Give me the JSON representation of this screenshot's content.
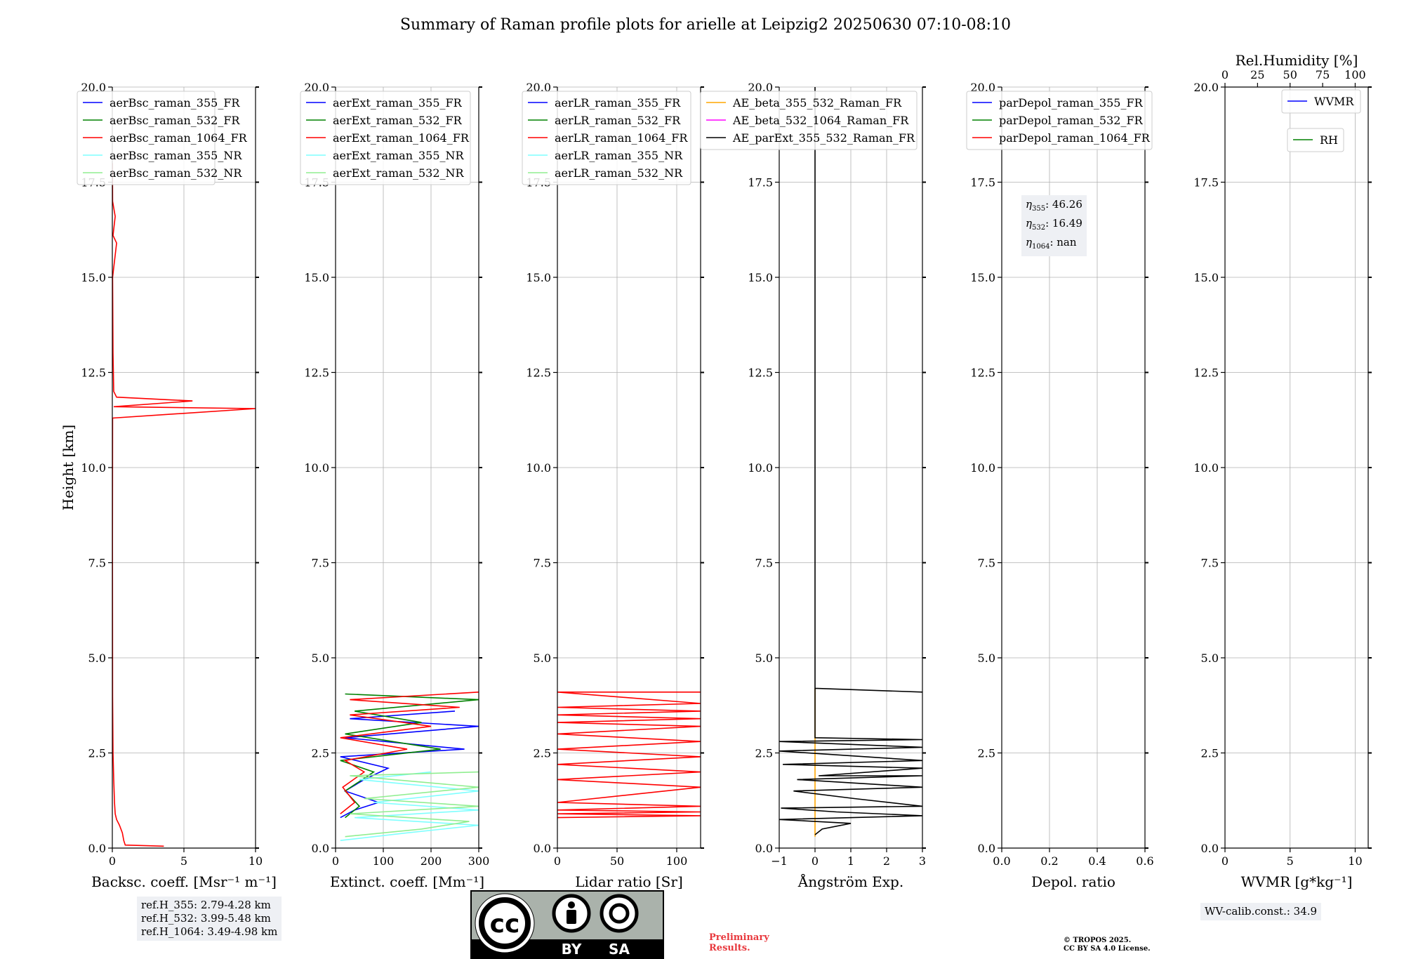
{
  "figure_title": "Summary of Raman profile plots for arielle at Leipzig2 20250630 07:10-08:10",
  "info_boxes": {
    "ref_heights": [
      "ref.H_355: 2.79-4.28 km",
      "ref.H_532: 3.99-5.48 km",
      "ref.H_1064: 3.49-4.98 km"
    ],
    "eta_values": [
      {
        "sub": "355",
        "value": ": 46.26"
      },
      {
        "sub": "532",
        "value": ": 16.49"
      },
      {
        "sub": "1064",
        "value": ": nan"
      }
    ],
    "wv_calib": "WV-calib.const.: 34.9"
  },
  "license_badge": {
    "cc": "cc",
    "by": "BY",
    "sa": "SA"
  },
  "preliminary": [
    "Preliminary",
    "Results."
  ],
  "copyright": [
    "© TROPOS 2025.",
    "CC BY SA 4.0 License."
  ],
  "colors": {
    "blue": "#0000ff",
    "green": "#008000",
    "red": "#ff0000",
    "cyan": "#7fffff",
    "lightgreen": "#90ee90",
    "orange": "#ffa500",
    "magenta": "#ff00ff",
    "black": "#000000"
  },
  "chart_data": [
    {
      "type": "line",
      "xlabel": "Backsc. coeff. [Msr⁻¹ m⁻¹]",
      "ylabel": "Height [km]",
      "xlim": [
        0,
        10
      ],
      "ylim": [
        0,
        20
      ],
      "xticks": [
        0,
        5,
        10
      ],
      "xticklabels": [
        "0",
        "5",
        "10"
      ],
      "yticks": [
        0,
        2.5,
        5,
        7.5,
        10,
        12.5,
        15,
        17.5,
        20
      ],
      "yticklabels": [
        "0.0",
        "2.5",
        "5.0",
        "7.5",
        "10.0",
        "12.5",
        "15.0",
        "17.5",
        "20.0"
      ],
      "grid": true,
      "legend_location": "upper-left",
      "series": [
        {
          "name": "aerBsc_raman_355_FR",
          "color": "blue",
          "points": []
        },
        {
          "name": "aerBsc_raman_532_FR",
          "color": "green",
          "points": []
        },
        {
          "name": "aerBsc_raman_1064_FR",
          "color": "red",
          "points": [
            [
              3.6,
              0.05
            ],
            [
              0.9,
              0.08
            ],
            [
              0.8,
              0.2
            ],
            [
              0.7,
              0.4
            ],
            [
              0.5,
              0.6
            ],
            [
              0.3,
              0.75
            ],
            [
              0.2,
              0.9
            ],
            [
              0.15,
              1.2
            ],
            [
              0.1,
              1.8
            ],
            [
              0.05,
              2.5
            ],
            [
              0.02,
              4
            ],
            [
              0.01,
              8
            ],
            [
              0.02,
              11.3
            ],
            [
              10,
              11.55
            ],
            [
              0.1,
              11.6
            ],
            [
              5.6,
              11.75
            ],
            [
              0.3,
              11.85
            ],
            [
              0.1,
              12.0
            ],
            [
              0.05,
              13
            ],
            [
              0.02,
              15
            ],
            [
              0.3,
              15.9
            ],
            [
              0.05,
              16.1
            ],
            [
              0.2,
              16.6
            ],
            [
              0.02,
              17.0
            ],
            [
              0.01,
              18
            ]
          ]
        },
        {
          "name": "aerBsc_raman_355_NR",
          "color": "cyan",
          "points": []
        },
        {
          "name": "aerBsc_raman_532_NR",
          "color": "lightgreen",
          "points": []
        }
      ]
    },
    {
      "type": "line",
      "xlabel": "Extinct. coeff. [Mm⁻¹]",
      "ylabel": "",
      "xlim": [
        0,
        300
      ],
      "ylim": [
        0,
        20
      ],
      "xticks": [
        0,
        100,
        200,
        300
      ],
      "xticklabels": [
        "0",
        "100",
        "200",
        "300"
      ],
      "yticks": [
        0,
        2.5,
        5,
        7.5,
        10,
        12.5,
        15,
        17.5,
        20
      ],
      "yticklabels": [
        "0.0",
        "2.5",
        "5.0",
        "7.5",
        "10.0",
        "12.5",
        "15.0",
        "17.5",
        "20.0"
      ],
      "grid": true,
      "legend_location": "upper-left",
      "series": [
        {
          "name": "aerExt_raman_355_FR",
          "color": "blue",
          "points": [
            [
              10,
              0.8
            ],
            [
              40,
              1.0
            ],
            [
              90,
              1.2
            ],
            [
              20,
              1.5
            ],
            [
              60,
              1.8
            ],
            [
              110,
              2.1
            ],
            [
              10,
              2.4
            ],
            [
              270,
              2.6
            ],
            [
              20,
              2.9
            ],
            [
              300,
              3.2
            ],
            [
              30,
              3.4
            ],
            [
              250,
              3.6
            ]
          ]
        },
        {
          "name": "aerExt_raman_532_FR",
          "color": "green",
          "points": [
            [
              20,
              0.8
            ],
            [
              50,
              1.1
            ],
            [
              20,
              1.5
            ],
            [
              80,
              2.0
            ],
            [
              10,
              2.3
            ],
            [
              220,
              2.6
            ],
            [
              20,
              3.0
            ],
            [
              180,
              3.3
            ],
            [
              40,
              3.6
            ],
            [
              300,
              3.9
            ],
            [
              20,
              4.05
            ]
          ]
        },
        {
          "name": "aerExt_raman_1064_FR",
          "color": "red",
          "points": [
            [
              10,
              0.9
            ],
            [
              40,
              1.2
            ],
            [
              15,
              1.6
            ],
            [
              60,
              2.0
            ],
            [
              20,
              2.3
            ],
            [
              150,
              2.6
            ],
            [
              10,
              2.9
            ],
            [
              200,
              3.2
            ],
            [
              30,
              3.5
            ],
            [
              260,
              3.7
            ],
            [
              30,
              3.9
            ],
            [
              300,
              4.1
            ]
          ]
        },
        {
          "name": "aerExt_raman_355_NR",
          "color": "cyan",
          "points": [
            [
              10,
              0.2
            ],
            [
              150,
              0.4
            ],
            [
              300,
              0.6
            ],
            [
              40,
              0.8
            ],
            [
              300,
              1.0
            ],
            [
              80,
              1.2
            ],
            [
              300,
              1.5
            ],
            [
              50,
              1.8
            ],
            [
              200,
              2.0
            ]
          ]
        },
        {
          "name": "aerExt_raman_532_NR",
          "color": "lightgreen",
          "points": [
            [
              20,
              0.3
            ],
            [
              180,
              0.5
            ],
            [
              280,
              0.7
            ],
            [
              30,
              0.9
            ],
            [
              300,
              1.1
            ],
            [
              60,
              1.3
            ],
            [
              300,
              1.6
            ],
            [
              30,
              1.9
            ],
            [
              300,
              2.0
            ]
          ]
        }
      ]
    },
    {
      "type": "line",
      "xlabel": "Lidar ratio [Sr]",
      "ylabel": "",
      "xlim": [
        0,
        120
      ],
      "ylim": [
        0,
        20
      ],
      "xticks": [
        0,
        50,
        100
      ],
      "xticklabels": [
        "0",
        "50",
        "100"
      ],
      "yticks": [
        0,
        2.5,
        5,
        7.5,
        10,
        12.5,
        15,
        17.5,
        20
      ],
      "yticklabels": [
        "0.0",
        "2.5",
        "5.0",
        "7.5",
        "10.0",
        "12.5",
        "15.0",
        "17.5",
        "20.0"
      ],
      "grid": true,
      "legend_location": "upper-left",
      "series": [
        {
          "name": "aerLR_raman_355_FR",
          "color": "blue",
          "points": []
        },
        {
          "name": "aerLR_raman_532_FR",
          "color": "green",
          "points": []
        },
        {
          "name": "aerLR_raman_1064_FR",
          "color": "red",
          "points": [
            [
              0,
              0.8
            ],
            [
              120,
              0.85
            ],
            [
              0,
              0.9
            ],
            [
              120,
              0.95
            ],
            [
              0,
              1.0
            ],
            [
              120,
              1.1
            ],
            [
              0,
              1.2
            ],
            [
              120,
              1.6
            ],
            [
              0,
              1.8
            ],
            [
              120,
              2.0
            ],
            [
              0,
              2.2
            ],
            [
              120,
              2.4
            ],
            [
              0,
              2.6
            ],
            [
              120,
              2.8
            ],
            [
              0,
              3.0
            ],
            [
              120,
              3.2
            ],
            [
              0,
              3.3
            ],
            [
              120,
              3.4
            ],
            [
              0,
              3.5
            ],
            [
              120,
              3.6
            ],
            [
              0,
              3.7
            ],
            [
              120,
              3.8
            ],
            [
              0,
              4.1
            ],
            [
              120,
              4.1
            ]
          ]
        },
        {
          "name": "aerLR_raman_355_NR",
          "color": "cyan",
          "points": []
        },
        {
          "name": "aerLR_raman_532_NR",
          "color": "lightgreen",
          "points": []
        }
      ]
    },
    {
      "type": "line",
      "xlabel": "Ångström Exp.",
      "ylabel": "",
      "xlim": [
        -1,
        3
      ],
      "ylim": [
        0,
        20
      ],
      "xticks": [
        -1,
        0,
        1,
        2,
        3
      ],
      "xticklabels": [
        "−1",
        "0",
        "1",
        "2",
        "3"
      ],
      "yticks": [
        0,
        2.5,
        5,
        7.5,
        10,
        12.5,
        15,
        17.5,
        20
      ],
      "yticklabels": [
        "0.0",
        "2.5",
        "5.0",
        "7.5",
        "10.0",
        "12.5",
        "15.0",
        "17.5",
        "20.0"
      ],
      "grid": true,
      "legend_location": "upper-left",
      "series": [
        {
          "name": "AE_beta_355_532_Raman_FR",
          "color": "orange",
          "points": [
            [
              0,
              0.3
            ],
            [
              0,
              4.2
            ]
          ]
        },
        {
          "name": "AE_beta_532_1064_Raman_FR",
          "color": "magenta",
          "points": []
        },
        {
          "name": "AE_parExt_355_532_Raman_FR",
          "color": "black",
          "points": [
            [
              0,
              0.35
            ],
            [
              0.2,
              0.5
            ],
            [
              1.0,
              0.65
            ],
            [
              -1,
              0.75
            ],
            [
              3,
              0.85
            ],
            [
              0.6,
              0.95
            ],
            [
              -0.95,
              1.05
            ],
            [
              3,
              1.1
            ],
            [
              1.1,
              1.3
            ],
            [
              -0.6,
              1.5
            ],
            [
              3,
              1.6
            ],
            [
              -0.5,
              1.8
            ],
            [
              3,
              1.9
            ],
            [
              0.1,
              1.9
            ],
            [
              3,
              2.1
            ],
            [
              -0.9,
              2.2
            ],
            [
              3,
              2.3
            ],
            [
              -1,
              2.55
            ],
            [
              3,
              2.65
            ],
            [
              -1,
              2.8
            ],
            [
              3,
              2.85
            ],
            [
              0,
              2.9
            ],
            [
              0,
              4.2
            ],
            [
              3,
              4.1
            ],
            [
              0,
              4.2
            ],
            [
              0,
              20
            ]
          ]
        }
      ]
    },
    {
      "type": "line",
      "xlabel": "Depol. ratio",
      "ylabel": "",
      "xlim": [
        0,
        0.6
      ],
      "ylim": [
        0,
        20
      ],
      "xticks": [
        0,
        0.2,
        0.4,
        0.6
      ],
      "xticklabels": [
        "0.0",
        "0.2",
        "0.4",
        "0.6"
      ],
      "yticks": [
        0,
        2.5,
        5,
        7.5,
        10,
        12.5,
        15,
        17.5,
        20
      ],
      "yticklabels": [
        "0.0",
        "2.5",
        "5.0",
        "7.5",
        "10.0",
        "12.5",
        "15.0",
        "17.5",
        "20.0"
      ],
      "grid": true,
      "legend_location": "upper-left",
      "series": [
        {
          "name": "parDepol_raman_355_FR",
          "color": "blue",
          "points": []
        },
        {
          "name": "parDepol_raman_532_FR",
          "color": "green",
          "points": []
        },
        {
          "name": "parDepol_raman_1064_FR",
          "color": "red",
          "points": []
        }
      ]
    },
    {
      "type": "line",
      "xlabel": "WVMR [g*kg⁻¹]",
      "ylabel": "",
      "top_xlabel": "Rel.Humidity [%]",
      "xlim": [
        0,
        11
      ],
      "ylim": [
        0,
        20
      ],
      "xticks": [
        0,
        5,
        10
      ],
      "xticklabels": [
        "0",
        "5",
        "10"
      ],
      "top_xlim": [
        0,
        110
      ],
      "top_xticks": [
        0,
        25,
        50,
        75,
        100
      ],
      "top_xticklabels": [
        "0",
        "25",
        "50",
        "75",
        "100"
      ],
      "yticks": [
        0,
        2.5,
        5,
        7.5,
        10,
        12.5,
        15,
        17.5,
        20
      ],
      "yticklabels": [
        "0.0",
        "2.5",
        "5.0",
        "7.5",
        "10.0",
        "12.5",
        "15.0",
        "17.5",
        "20.0"
      ],
      "grid": true,
      "legend_location": "upper-right",
      "series": [
        {
          "name": "WVMR",
          "color": "blue",
          "points": []
        },
        {
          "name": "RH",
          "color": "green",
          "points": []
        }
      ]
    }
  ]
}
